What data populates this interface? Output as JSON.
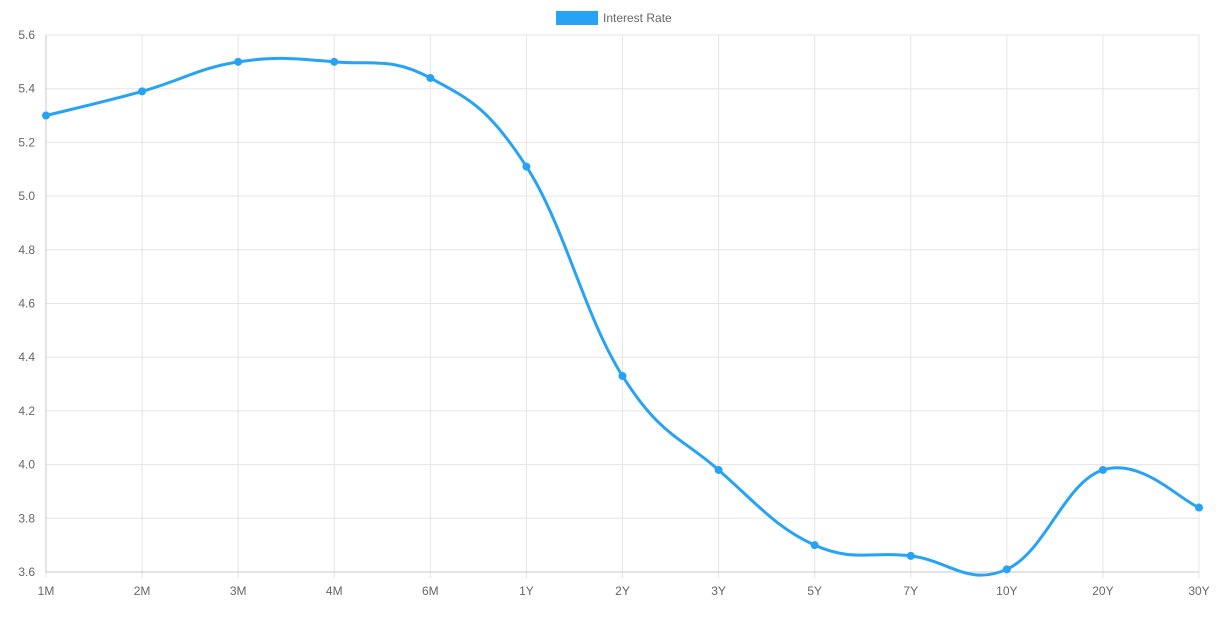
{
  "chart_data": {
    "type": "line",
    "legend": {
      "position": "top-center",
      "label": "Interest Rate"
    },
    "categories": [
      "1M",
      "2M",
      "3M",
      "4M",
      "6M",
      "1Y",
      "2Y",
      "3Y",
      "5Y",
      "7Y",
      "10Y",
      "20Y",
      "30Y"
    ],
    "series": [
      {
        "name": "Interest Rate",
        "color": "#27a3f5",
        "values": [
          5.3,
          5.39,
          5.5,
          5.5,
          5.44,
          5.11,
          4.33,
          3.98,
          3.7,
          3.66,
          3.61,
          3.98,
          3.84
        ]
      }
    ],
    "y_ticks": [
      "5.6",
      "5.4",
      "5.2",
      "5.0",
      "4.8",
      "4.6",
      "4.4",
      "4.2",
      "4.0",
      "3.8",
      "3.6"
    ],
    "ylim": [
      3.6,
      5.6
    ],
    "grid": true,
    "smooth": true
  }
}
